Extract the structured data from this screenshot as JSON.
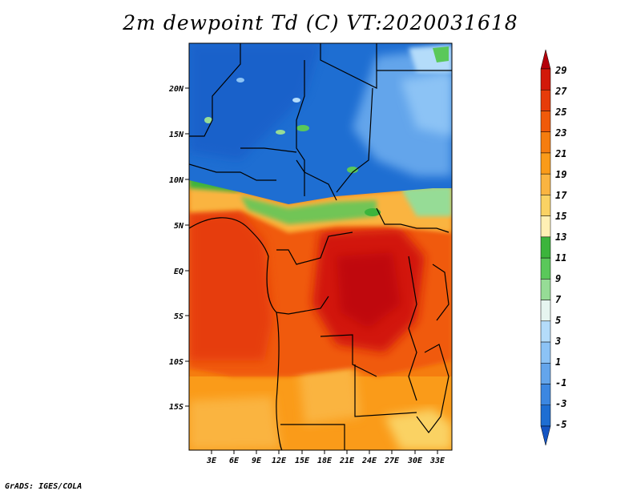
{
  "title": "2m dewpoint Td (C) VT:2020031618",
  "credit": "GrADS: IGES/COLA",
  "lat_labels": [
    "20N",
    "15N",
    "10N",
    "5N",
    "EQ",
    "5S",
    "10S",
    "15S"
  ],
  "lon_labels": [
    "3E",
    "6E",
    "9E",
    "12E",
    "15E",
    "18E",
    "21E",
    "24E",
    "27E",
    "30E",
    "33E"
  ],
  "colorbar": {
    "labels": [
      "29",
      "27",
      "25",
      "23",
      "21",
      "19",
      "17",
      "15",
      "13",
      "11",
      "9",
      "7",
      "5",
      "3",
      "1",
      "-1",
      "-3",
      "-5"
    ],
    "colors": [
      "#b4000a",
      "#d2190a",
      "#e63c0a",
      "#f05a0a",
      "#f57d0f",
      "#fa9b19",
      "#fab441",
      "#fad264",
      "#fff0b4",
      "#3cb43c",
      "#5ac85a",
      "#96dc96",
      "#e6f5f0",
      "#b4dcfa",
      "#8cc3f5",
      "#64a5eb",
      "#3c87e1",
      "#1e6ed2",
      "#1455c3"
    ]
  }
}
